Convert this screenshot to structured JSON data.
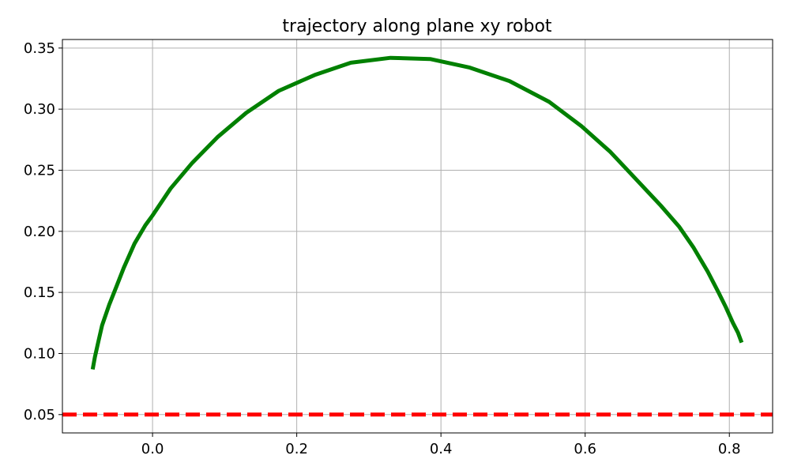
{
  "chart_data": {
    "type": "line",
    "title": "trajectory along plane xy robot",
    "xlabel": "",
    "ylabel": "",
    "xlim": [
      -0.125,
      0.86
    ],
    "ylim": [
      0.035,
      0.357
    ],
    "xticks": [
      "0.0",
      "0.2",
      "0.4",
      "0.6",
      "0.8"
    ],
    "yticks": [
      "0.05",
      "0.10",
      "0.15",
      "0.20",
      "0.25",
      "0.30",
      "0.35"
    ],
    "grid": true,
    "series": [
      {
        "color": "#008000",
        "style": "solid",
        "x": [
          -0.083,
          -0.08,
          -0.075,
          -0.07,
          -0.06,
          -0.05,
          -0.04,
          -0.025,
          -0.01,
          0.0,
          0.025,
          0.055,
          0.09,
          0.13,
          0.175,
          0.225,
          0.275,
          0.33,
          0.385,
          0.44,
          0.495,
          0.55,
          0.595,
          0.635,
          0.67,
          0.705,
          0.73,
          0.75,
          0.77,
          0.785,
          0.795,
          0.805,
          0.812,
          0.817
        ],
        "y": [
          0.087,
          0.097,
          0.11,
          0.123,
          0.14,
          0.155,
          0.17,
          0.19,
          0.205,
          0.213,
          0.235,
          0.256,
          0.277,
          0.297,
          0.315,
          0.328,
          0.338,
          0.342,
          0.341,
          0.334,
          0.323,
          0.306,
          0.286,
          0.265,
          0.243,
          0.221,
          0.204,
          0.187,
          0.167,
          0.15,
          0.138,
          0.125,
          0.117,
          0.109
        ]
      },
      {
        "color": "#ff0000",
        "style": "dashed",
        "x": [
          -0.125,
          0.86
        ],
        "y": [
          0.05,
          0.05
        ]
      }
    ]
  }
}
